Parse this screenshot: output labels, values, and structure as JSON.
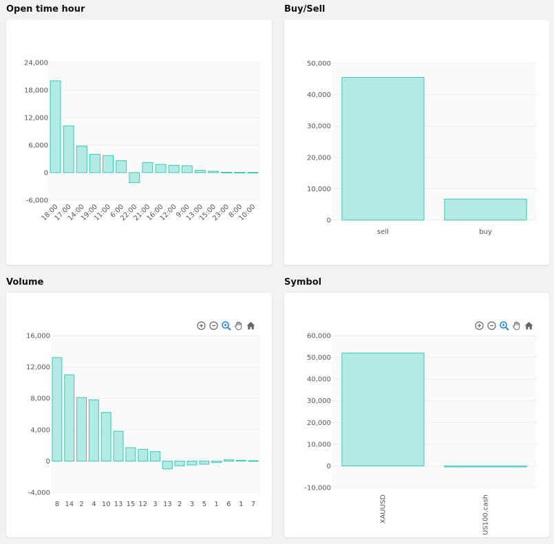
{
  "colors": {
    "bar_fill": "#b2ebe4",
    "bar_stroke": "#3cc7b0",
    "grid": "#eeeeee",
    "plot_bg": "#fafafa",
    "icon": "#666666",
    "icon_active": "#1e88e5"
  },
  "panels": [
    {
      "title": "Open time hour",
      "has_toolbar": false,
      "x_rotate": -45,
      "chart_data": {
        "type": "bar",
        "categories": [
          "18:00",
          "17:00",
          "14:00",
          "19:00",
          "11:00",
          "6:00",
          "22:00",
          "21:00",
          "16:00",
          "12:00",
          "9:00",
          "13:00",
          "15:00",
          "23:00",
          "8:00",
          "10:00"
        ],
        "values": [
          20000,
          10200,
          5800,
          4000,
          3700,
          2600,
          -2200,
          2200,
          1800,
          1600,
          1500,
          500,
          300,
          80,
          60,
          50
        ],
        "yticks": [
          -6000,
          0,
          6000,
          12000,
          18000,
          24000
        ],
        "ylim": [
          -6000,
          24000
        ]
      }
    },
    {
      "title": "Buy/Sell",
      "has_toolbar": false,
      "x_rotate": 0,
      "chart_data": {
        "type": "bar",
        "categories": [
          "sell",
          "buy"
        ],
        "values": [
          45500,
          6700
        ],
        "yticks": [
          0,
          10000,
          20000,
          30000,
          40000,
          50000
        ],
        "ylim": [
          0,
          50000
        ]
      }
    },
    {
      "title": "Volume",
      "has_toolbar": true,
      "x_rotate": 0,
      "chart_data": {
        "type": "bar",
        "categories": [
          "8",
          "14",
          "2",
          "4",
          "10",
          "13",
          "15",
          "12",
          "3",
          "13",
          "2",
          "3",
          "5",
          "1",
          "6",
          "1",
          "7"
        ],
        "values": [
          13200,
          11000,
          8100,
          7800,
          6200,
          3800,
          1700,
          1500,
          1200,
          -1000,
          -600,
          -500,
          -400,
          -200,
          150,
          100,
          50
        ],
        "yticks": [
          -4000,
          0,
          4000,
          8000,
          12000,
          16000
        ],
        "ylim": [
          -4000,
          16000
        ]
      }
    },
    {
      "title": "Symbol",
      "has_toolbar": true,
      "x_rotate": -90,
      "chart_data": {
        "type": "bar",
        "categories": [
          "XAUUSD",
          "US100.cash"
        ],
        "values": [
          52000,
          -500
        ],
        "yticks": [
          -10000,
          0,
          10000,
          20000,
          30000,
          40000,
          50000,
          60000
        ],
        "ylim": [
          -10000,
          60000
        ]
      }
    }
  ],
  "toolbar": {
    "icons": [
      "zoom-in-icon",
      "zoom-out-icon",
      "zoom-select-icon",
      "pan-hand-icon",
      "home-reset-icon"
    ]
  }
}
